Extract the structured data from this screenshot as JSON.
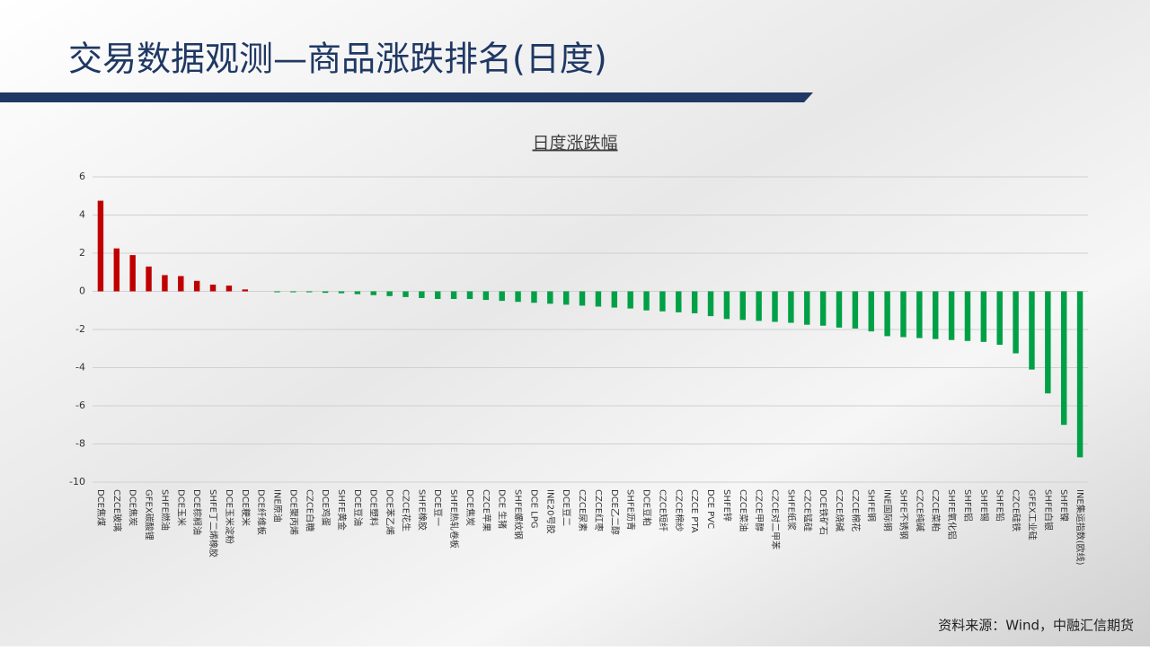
{
  "header": {
    "title": "交易数据观测—商品涨跌排名(日度)"
  },
  "chart_data": {
    "type": "bar",
    "title": "日度涨跌幅",
    "categories": [
      "DCE焦煤",
      "CZCE玻璃",
      "DCE焦炭",
      "GFEX碳酸锂",
      "SHFE燃油",
      "DCE玉米",
      "DCE棕榈油",
      "SHFE丁二烯橡胶",
      "DCE玉米淀粉",
      "DCE粳米",
      "DCE纤维板",
      "INE原油",
      "DCE聚丙烯",
      "CZCE白糖",
      "DCE鸡蛋",
      "SHFE黄金",
      "DCE豆油",
      "DCE塑料",
      "DCE苯乙烯",
      "CZCE花生",
      "SHFE橡胶",
      "DCE豆一",
      "SHFE热轧卷板",
      "DCE焦炭",
      "CZCE苹果",
      "DCE 生猪",
      "SHFE螺纹钢",
      "DCE LPG",
      "INE20号胶",
      "DCE豆二",
      "CZCE尿素",
      "CZCE红枣",
      "DCE乙二醇",
      "SHFE沥青",
      "DCE豆粕",
      "CZCE短纤",
      "CZCE棉纱",
      "CZCE PTA",
      "DCE PVC",
      "SHFE锌",
      "CZCE菜油",
      "CZCE甲醇",
      "CZCE对二甲苯",
      "SHFE纸浆",
      "CZCE锰硅",
      "DCE铁矿石",
      "CZCE烧碱",
      "CZCE棉花",
      "SHFE铜",
      "INE国际铜",
      "SHFE不锈钢",
      "CZCE纯碱",
      "CZCE菜粕",
      "SHFE氧化铝",
      "SHFE铝",
      "SHFE锡",
      "SHFE铅",
      "CZCE硅铁",
      "GFEX工业硅",
      "SHFE白银",
      "SHFE镍",
      "INE集运指数(欧线)"
    ],
    "values": [
      4.75,
      2.25,
      1.9,
      1.3,
      0.85,
      0.8,
      0.55,
      0.35,
      0.3,
      0.1,
      0,
      -0.05,
      -0.05,
      -0.05,
      -0.08,
      -0.1,
      -0.15,
      -0.2,
      -0.25,
      -0.3,
      -0.35,
      -0.4,
      -0.4,
      -0.4,
      -0.45,
      -0.5,
      -0.55,
      -0.6,
      -0.65,
      -0.7,
      -0.75,
      -0.8,
      -0.85,
      -0.9,
      -1.0,
      -1.05,
      -1.1,
      -1.15,
      -1.3,
      -1.45,
      -1.5,
      -1.55,
      -1.6,
      -1.65,
      -1.75,
      -1.8,
      -1.9,
      -1.95,
      -2.1,
      -2.35,
      -2.4,
      -2.45,
      -2.5,
      -2.55,
      -2.6,
      -2.65,
      -2.8,
      -3.25,
      -4.1,
      -5.35,
      -7.0,
      -8.7
    ],
    "positive_color": "#c00000",
    "negative_color": "#00a046",
    "ylim": [
      -10,
      6
    ],
    "yticks": [
      6,
      4,
      2,
      0,
      -2,
      -4,
      -6,
      -8,
      -10
    ],
    "grid": true
  },
  "footer": {
    "source": "资料来源：Wind，中融汇信期货"
  }
}
